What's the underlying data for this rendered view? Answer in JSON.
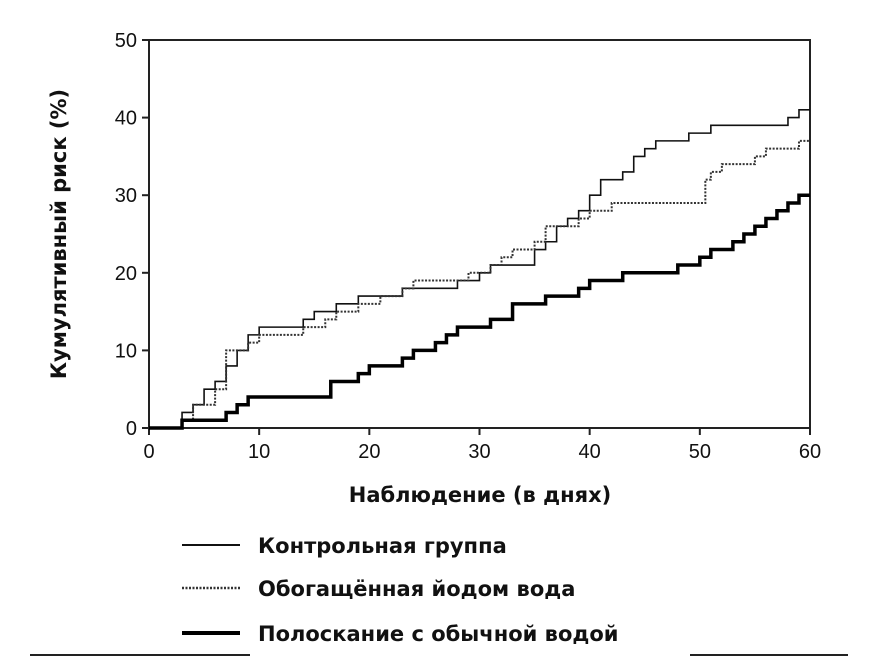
{
  "chart_data": {
    "type": "line",
    "step": true,
    "x_label": "Наблюдение (в днях)",
    "y_label": "Кумулятивный риск (%)",
    "xlim": [
      0,
      60
    ],
    "xticks": [
      0,
      10,
      20,
      30,
      40,
      50,
      60
    ],
    "ylim": [
      0,
      50
    ],
    "yticks": [
      0,
      10,
      20,
      30,
      40,
      50
    ],
    "series": [
      {
        "name": "Контрольная группа",
        "color": "#111111",
        "style": "solid",
        "x": [
          0,
          3,
          4,
          5,
          6,
          7,
          8,
          9,
          10,
          13,
          14,
          15,
          17,
          19,
          22,
          23,
          25,
          28,
          30,
          31,
          34,
          35,
          36,
          37,
          38,
          39,
          40,
          41,
          43,
          44,
          45,
          46,
          49,
          51,
          54,
          58,
          59,
          60
        ],
        "values": [
          0,
          2,
          3,
          5,
          6,
          8,
          10,
          12,
          13,
          13,
          14,
          15,
          16,
          17,
          17,
          18,
          18,
          19,
          20,
          21,
          21,
          23,
          24,
          26,
          27,
          28,
          30,
          32,
          33,
          35,
          36,
          37,
          38,
          39,
          39,
          40,
          41,
          41
        ]
      },
      {
        "name": "Обогащённая йодом вода",
        "color": "#333333",
        "style": "dotted",
        "x": [
          0,
          3,
          4,
          6,
          7,
          9,
          10,
          14,
          16,
          17,
          19,
          21,
          23,
          24,
          27,
          29,
          31,
          32,
          33,
          35,
          36,
          39,
          40,
          42,
          50,
          50.5,
          51,
          52,
          55,
          56,
          59,
          60
        ],
        "values": [
          0,
          1,
          3,
          5,
          10,
          11,
          12,
          13,
          14,
          15,
          16,
          17,
          18,
          19,
          19,
          20,
          21,
          22,
          23,
          24,
          26,
          27,
          28,
          29,
          29,
          32,
          33,
          34,
          35,
          36,
          37,
          37
        ]
      },
      {
        "name": "Полоскание с обычной водой",
        "color": "#000000",
        "style": "thick",
        "x": [
          0,
          3,
          7,
          8,
          9,
          16,
          16.5,
          19,
          20,
          23,
          24,
          26,
          27,
          28,
          30,
          31,
          33,
          36,
          39,
          40,
          43,
          48,
          50,
          51,
          53,
          54,
          55,
          56,
          57,
          58,
          59,
          60
        ],
        "values": [
          0,
          1,
          2,
          3,
          4,
          4,
          6,
          7,
          8,
          9,
          10,
          11,
          12,
          13,
          13,
          14,
          16,
          17,
          18,
          19,
          20,
          21,
          22,
          23,
          24,
          25,
          26,
          27,
          28,
          29,
          30,
          30
        ]
      }
    ]
  }
}
